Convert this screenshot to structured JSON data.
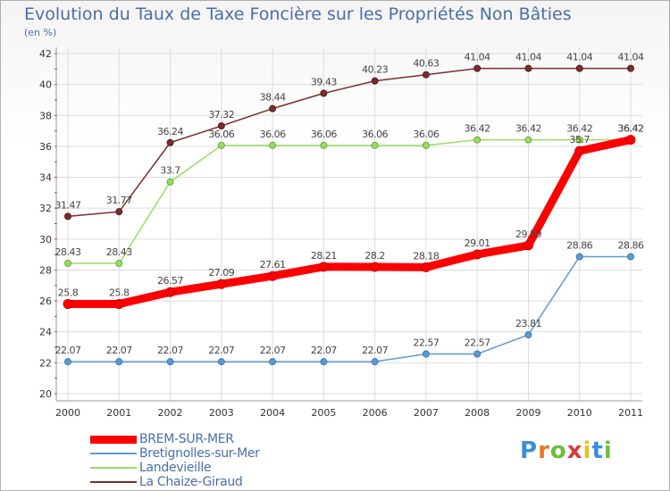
{
  "chart_data": {
    "type": "line",
    "title": "Evolution du Taux de Taxe Foncière sur les Propriétés Non Bâties",
    "ylabel": "(en %)",
    "xlabel": "",
    "categories": [
      "2000",
      "2001",
      "2002",
      "2003",
      "2004",
      "2005",
      "2006",
      "2007",
      "2008",
      "2009",
      "2010",
      "2011"
    ],
    "ylim": [
      20,
      42
    ],
    "yticks": [
      20,
      22,
      24,
      26,
      28,
      30,
      32,
      34,
      36,
      38,
      40,
      42
    ],
    "grid": true,
    "legend_position": "bottom-left",
    "series": [
      {
        "name": "BREM-SUR-MER",
        "color": "#ff0000",
        "values": [
          25.8,
          25.8,
          26.57,
          27.09,
          27.61,
          28.21,
          28.2,
          28.18,
          29.01,
          29.59,
          35.7,
          36.42
        ],
        "labels": [
          "25.8",
          "25.8",
          "26.57",
          "27.09",
          "27.61",
          "28.21",
          "28.2",
          "28.18",
          "29.01",
          "29.59",
          "35.7",
          "36.42"
        ]
      },
      {
        "name": "Bretignolles-sur-Mer",
        "color": "#5b9bd5",
        "values": [
          22.07,
          22.07,
          22.07,
          22.07,
          22.07,
          22.07,
          22.07,
          22.57,
          22.57,
          23.81,
          28.86,
          28.86
        ],
        "labels": [
          "22.07",
          "22.07",
          "22.07",
          "22.07",
          "22.07",
          "22.07",
          "22.07",
          "22.57",
          "22.57",
          "23.81",
          "28.86",
          "28.86"
        ]
      },
      {
        "name": "Landevieille",
        "color": "#99dd66",
        "values": [
          28.43,
          28.43,
          33.7,
          36.06,
          36.06,
          36.06,
          36.06,
          36.06,
          36.42,
          36.42,
          36.42,
          36.42
        ],
        "labels": [
          "28.43",
          "28.43",
          "33.7",
          "36.06",
          "36.06",
          "36.06",
          "36.06",
          "36.06",
          "36.42",
          "36.42",
          "36.42",
          "36.42"
        ]
      },
      {
        "name": "La Chaize-Giraud",
        "color": "#7a2e2e",
        "values": [
          31.47,
          31.77,
          36.24,
          37.32,
          38.44,
          39.43,
          40.23,
          40.63,
          41.04,
          41.04,
          41.04,
          41.04
        ],
        "labels": [
          "31.47",
          "31.77",
          "36.24",
          "37.32",
          "38.44",
          "39.43",
          "40.23",
          "40.63",
          "41.04",
          "41.04",
          "41.04",
          "41.04"
        ]
      }
    ]
  },
  "legend": [
    {
      "label": "BREM-SUR-MER",
      "color": "#ff0000",
      "thickness": "thick"
    },
    {
      "label": "Bretignolles-sur-Mer",
      "color": "#5b9bd5",
      "thickness": "thin"
    },
    {
      "label": "Landevieille",
      "color": "#99dd66",
      "thickness": "thin"
    },
    {
      "label": "La Chaize-Giraud",
      "color": "#7a2e2e",
      "thickness": "thin"
    }
  ],
  "logo": {
    "letters": [
      "P",
      "r",
      "o",
      "x",
      "i",
      "t",
      "i"
    ],
    "colors": [
      "#3a8fd6",
      "#e8762c",
      "#6cbf3c",
      "#d63a3a",
      "#e8c22c",
      "#3a8fd6",
      "#6cbf3c"
    ]
  }
}
